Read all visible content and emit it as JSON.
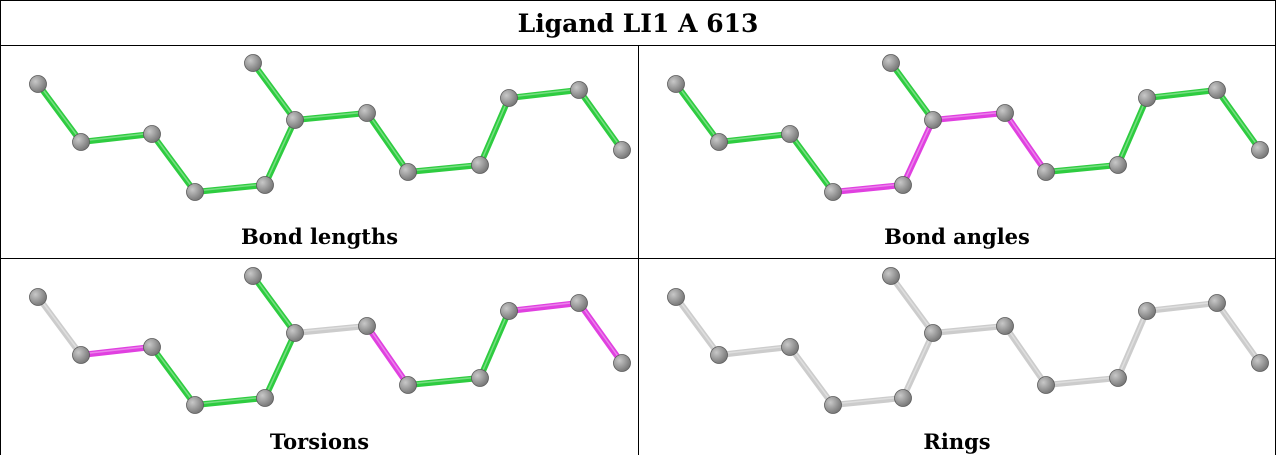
{
  "title": "Ligand LI1 A 613",
  "colors": {
    "ok": "#2ecc40",
    "outlier": "#e040e0",
    "none": "#cccccc",
    "atom": "#7a7a7a"
  },
  "panels": [
    {
      "label": "Bond lengths",
      "bond_colors": [
        "ok",
        "ok",
        "ok",
        "ok",
        "ok",
        "ok",
        "ok",
        "ok",
        "ok",
        "ok",
        "ok",
        "ok",
        "ok",
        "ok"
      ]
    },
    {
      "label": "Bond angles",
      "bond_colors": [
        "ok",
        "ok",
        "ok",
        "outlier",
        "outlier",
        "ok",
        "outlier",
        "outlier",
        "ok",
        "ok",
        "ok",
        "ok",
        "ok",
        "ok"
      ]
    },
    {
      "label": "Torsions",
      "bond_colors": [
        "none",
        "outlier",
        "ok",
        "ok",
        "ok",
        "ok",
        "none",
        "outlier",
        "ok",
        "ok",
        "outlier",
        "outlier",
        "none",
        "ok"
      ]
    },
    {
      "label": "Rings",
      "bond_colors": [
        "none",
        "none",
        "none",
        "none",
        "none",
        "none",
        "none",
        "none",
        "none",
        "none",
        "none",
        "none",
        "none",
        "none"
      ]
    }
  ]
}
